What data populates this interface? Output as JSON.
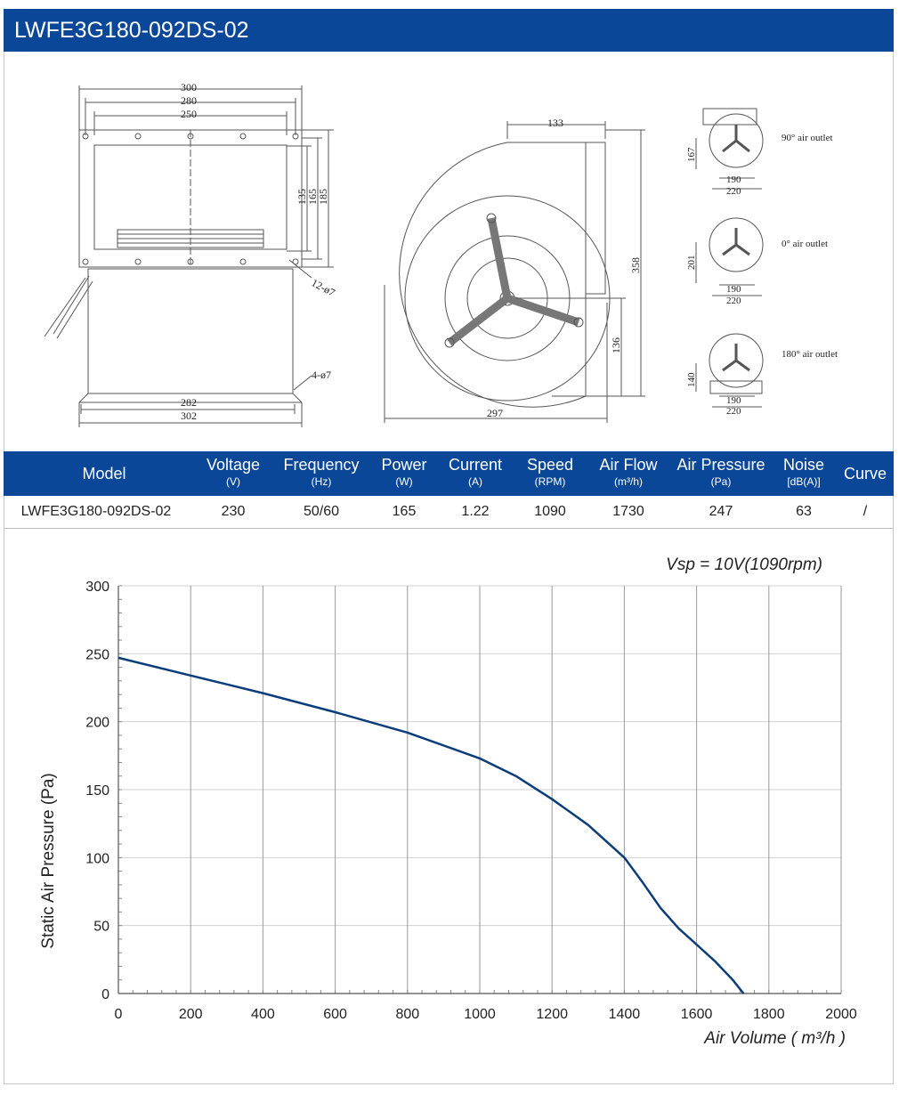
{
  "title": "LWFE3G180-092DS-02",
  "drawing": {
    "front_dims": [
      "300",
      "280",
      "250",
      "135",
      "165",
      "185",
      "12-ø7",
      "4-ø7",
      "282",
      "302"
    ],
    "side_dims": [
      "133",
      "358",
      "136",
      "297"
    ],
    "outlets": [
      {
        "label": "90° air outlet",
        "height": "167",
        "w1": "190",
        "w2": "220"
      },
      {
        "label": "0° air outlet",
        "height": "201",
        "w1": "190",
        "w2": "220"
      },
      {
        "label": "180° air outlet",
        "height": "140",
        "w1": "190",
        "w2": "220"
      }
    ]
  },
  "specs": {
    "headers": [
      {
        "name": "Model",
        "unit": ""
      },
      {
        "name": "Voltage",
        "unit": "(V)"
      },
      {
        "name": "Frequency",
        "unit": "(Hz)"
      },
      {
        "name": "Power",
        "unit": "(W)"
      },
      {
        "name": "Current",
        "unit": "(A)"
      },
      {
        "name": "Speed",
        "unit": "(RPM)"
      },
      {
        "name": "Air Flow",
        "unit": "(m³/h)"
      },
      {
        "name": "Air Pressure",
        "unit": "(Pa)"
      },
      {
        "name": "Noise",
        "unit": "[dB(A)]"
      },
      {
        "name": "Curve",
        "unit": ""
      }
    ],
    "row": [
      "LWFE3G180-092DS-02",
      "230",
      "50/60",
      "165",
      "1.22",
      "1090",
      "1730",
      "247",
      "63",
      "/"
    ]
  },
  "chart_data": {
    "type": "line",
    "annotation": "Vsp = 10V(1090rpm)",
    "xlabel": "Air Volume ( m³/h )",
    "ylabel": "Static Air Pressure  (Pa)",
    "xlim": [
      0,
      2000
    ],
    "ylim": [
      0,
      300
    ],
    "xticks": [
      "0",
      "200",
      "400",
      "600",
      "800",
      "1000",
      "1200",
      "1400",
      "1600",
      "1800",
      "2000"
    ],
    "yticks": [
      "0",
      "50",
      "100",
      "150",
      "200",
      "250",
      "300"
    ],
    "grid": true,
    "series": [
      {
        "color": "#0b3d7a",
        "x": [
          0,
          200,
          400,
          600,
          800,
          1000,
          1100,
          1200,
          1300,
          1400,
          1450,
          1500,
          1550,
          1600,
          1650,
          1700,
          1730
        ],
        "y": [
          247,
          234,
          221,
          207,
          192,
          173,
          160,
          143,
          124,
          100,
          82,
          63,
          48,
          36,
          24,
          10,
          0
        ]
      }
    ]
  }
}
